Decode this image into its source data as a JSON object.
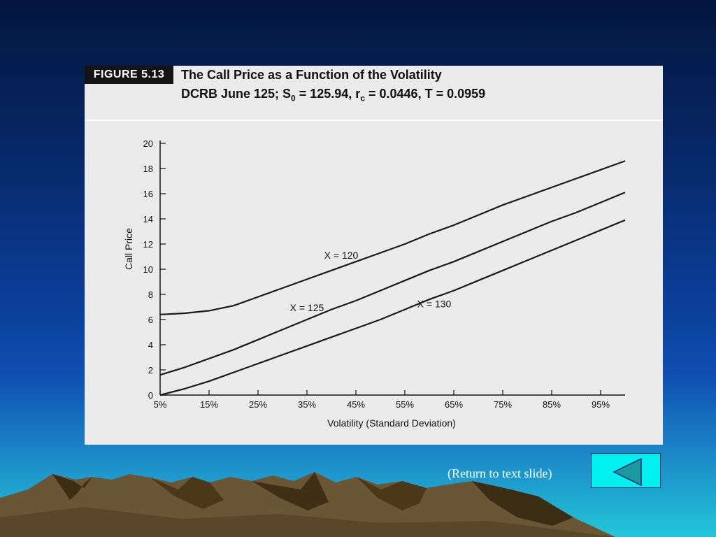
{
  "figure": {
    "tag": "FIGURE 5.13",
    "title": "The Call Price as a Function of the Volatility",
    "subtitle_parts": [
      "DCRB June 125; S",
      "0",
      " = 125.94, r",
      "c",
      " = 0.0446, T = 0.0959"
    ]
  },
  "nav": {
    "return_label": "(Return to text slide)",
    "back_icon": "left-triangle-icon"
  },
  "colors": {
    "figure_bg": "#ebebeb",
    "curve": "#1a1a1a",
    "button_fill": "#00f0f0",
    "arrow_fill": "#1a9aa0"
  },
  "chart_data": {
    "type": "line",
    "title": "The Call Price as a Function of the Volatility",
    "xlabel": "Volatility (Standard Deviation)",
    "ylabel": "Call Price",
    "x_ticks": [
      "5%",
      "15%",
      "25%",
      "35%",
      "45%",
      "55%",
      "65%",
      "75%",
      "85%",
      "95%"
    ],
    "y_ticks": [
      "0",
      "2",
      "4",
      "6",
      "8",
      "10",
      "12",
      "14",
      "16",
      "18",
      "20"
    ],
    "xlim": [
      5,
      100
    ],
    "ylim": [
      0,
      20
    ],
    "grid": false,
    "series": [
      {
        "name": "X = 120",
        "x": [
          5,
          10,
          15,
          20,
          25,
          30,
          35,
          40,
          45,
          50,
          55,
          60,
          65,
          70,
          75,
          80,
          85,
          90,
          95,
          100
        ],
        "values": [
          6.4,
          6.5,
          6.7,
          7.1,
          7.8,
          8.5,
          9.2,
          9.9,
          10.6,
          11.3,
          12.0,
          12.8,
          13.5,
          14.3,
          15.1,
          15.8,
          16.5,
          17.2,
          17.9,
          18.6
        ]
      },
      {
        "name": "X = 125",
        "x": [
          5,
          10,
          15,
          20,
          25,
          30,
          35,
          40,
          45,
          50,
          55,
          60,
          65,
          70,
          75,
          80,
          85,
          90,
          95,
          100
        ],
        "values": [
          1.6,
          2.2,
          2.9,
          3.6,
          4.4,
          5.2,
          6.0,
          6.8,
          7.5,
          8.3,
          9.1,
          9.9,
          10.6,
          11.4,
          12.2,
          13.0,
          13.8,
          14.5,
          15.3,
          16.1
        ]
      },
      {
        "name": "X = 130",
        "x": [
          5,
          10,
          15,
          20,
          25,
          30,
          35,
          40,
          45,
          50,
          55,
          60,
          65,
          70,
          75,
          80,
          85,
          90,
          95,
          100
        ],
        "values": [
          0.0,
          0.5,
          1.1,
          1.8,
          2.5,
          3.2,
          3.9,
          4.6,
          5.3,
          6.0,
          6.8,
          7.6,
          8.3,
          9.1,
          9.9,
          10.7,
          11.5,
          12.3,
          13.1,
          13.9
        ]
      }
    ]
  }
}
